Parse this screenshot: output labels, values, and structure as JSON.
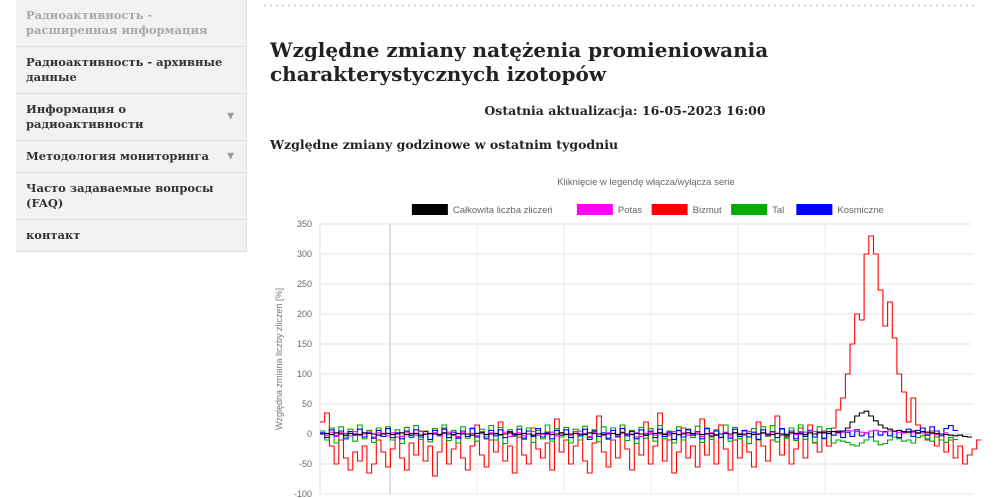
{
  "sidebar": {
    "items": [
      {
        "label": "Радиоактивность - расширенная информация",
        "muted": true,
        "chevron": false
      },
      {
        "label": "Радиоактивность - архивные данные",
        "muted": false,
        "chevron": false
      },
      {
        "label": "Информация о радиоактивности",
        "muted": false,
        "chevron": true
      },
      {
        "label": "Методология мониторинга",
        "muted": false,
        "chevron": true
      },
      {
        "label": "Часто задаваемые вопросы (FAQ)",
        "muted": false,
        "chevron": false
      },
      {
        "label": "контакт",
        "muted": false,
        "chevron": false
      }
    ]
  },
  "main": {
    "title": "Względne zmiany natężenia promieniowania charakterystycznych izotopów",
    "updated": "Ostatnia aktualizacja: 16-05-2023 16:00",
    "subheading": "Względne zmiany godzinowe w ostatnim tygodniu"
  },
  "chart_data": {
    "type": "line",
    "title": "Kliknięcie w legendę włącza/wyłącza serie",
    "ylabel": "Względna zmiana liczby zliczeń [%]",
    "ylim": [
      -100,
      350
    ],
    "yticks": [
      350,
      300,
      250,
      200,
      150,
      100,
      50,
      0,
      -50,
      -100
    ],
    "grid": true,
    "legend_position": "top",
    "series": [
      {
        "name": "Całkowita liczba zliczeń",
        "color": "#000000",
        "values": [
          0,
          1,
          -1,
          2,
          0,
          -2,
          1,
          0,
          -1,
          2,
          1,
          0,
          -2,
          0,
          1,
          -1,
          0,
          2,
          -1,
          0,
          1,
          -2,
          0,
          1,
          0,
          -1,
          2,
          0,
          -1,
          1,
          0,
          0,
          -2,
          1,
          2,
          -1,
          0,
          1,
          -1,
          0,
          2,
          0,
          -1,
          1,
          0,
          -2,
          1,
          0,
          1,
          -1,
          0,
          2,
          -1,
          0,
          1,
          0,
          -1,
          2,
          1,
          0,
          -1,
          0,
          1,
          -1,
          2,
          0,
          -1,
          1,
          0,
          -2,
          0,
          1,
          2,
          -1,
          0,
          1,
          -1,
          0,
          2,
          1,
          0,
          -1,
          0,
          1,
          -2,
          0,
          1,
          0,
          2,
          -1,
          0,
          1,
          -1,
          0,
          2,
          0,
          -1,
          1,
          0,
          -1,
          2,
          1,
          0,
          -1,
          2,
          0,
          3,
          2,
          1,
          4,
          3,
          5,
          10,
          20,
          30,
          35,
          38,
          30,
          22,
          15,
          10,
          8,
          5,
          6,
          4,
          3,
          5,
          2,
          4,
          3,
          2,
          1,
          0,
          -1,
          -2,
          -3,
          -2,
          -4,
          -5
        ]
      },
      {
        "name": "Potas",
        "color": "#ff00ff",
        "values": [
          0,
          -2,
          3,
          -4,
          2,
          1,
          -3,
          4,
          -2,
          0,
          3,
          -5,
          2,
          1,
          -3,
          2,
          0,
          -4,
          3,
          1,
          -2,
          4,
          -1,
          0,
          2,
          -3,
          1,
          3,
          -2,
          -4,
          2,
          0,
          1,
          -3,
          4,
          -1,
          2,
          0,
          -2,
          3,
          -4,
          1,
          2,
          -3,
          0,
          4,
          -2,
          1,
          -1,
          3,
          -3,
          2,
          0,
          -2,
          4,
          -1,
          1,
          -4,
          3,
          0,
          -2,
          2,
          1,
          -3,
          3,
          -1,
          0,
          2,
          -4,
          1,
          3,
          -2,
          0,
          1,
          -3,
          4,
          -1,
          2,
          -2,
          0,
          3,
          -4,
          1,
          2,
          -1,
          0,
          3,
          -3,
          2,
          1,
          -2,
          4,
          0,
          -1,
          2,
          -3,
          3,
          1,
          -2,
          0,
          2,
          -1,
          4,
          3,
          5,
          4,
          2,
          3,
          1,
          4,
          2,
          3,
          6,
          5,
          4,
          3,
          2,
          5,
          6,
          4,
          3,
          5,
          4,
          3,
          2,
          4,
          3,
          1,
          2,
          0,
          1,
          -1,
          0,
          2
        ]
      },
      {
        "name": "Bizmut",
        "color": "#ff0000",
        "values": [
          20,
          35,
          -20,
          -50,
          -10,
          -40,
          -60,
          -30,
          -45,
          -20,
          -65,
          -50,
          -10,
          -30,
          -55,
          -25,
          -5,
          -40,
          -60,
          -15,
          -35,
          5,
          -45,
          -20,
          -70,
          -30,
          10,
          -50,
          -25,
          -5,
          -40,
          -60,
          -20,
          15,
          -35,
          -55,
          -10,
          -30,
          20,
          -45,
          -20,
          -65,
          -5,
          -35,
          -50,
          10,
          -25,
          -40,
          -15,
          -60,
          25,
          -30,
          -10,
          -50,
          -20,
          5,
          -45,
          -65,
          -15,
          30,
          -30,
          -55,
          -10,
          -40,
          15,
          -25,
          -60,
          -5,
          -35,
          20,
          -50,
          -20,
          35,
          -45,
          -10,
          -65,
          -30,
          10,
          -40,
          -20,
          -55,
          25,
          -35,
          -5,
          -50,
          15,
          -25,
          -60,
          -10,
          -40,
          5,
          -30,
          -55,
          20,
          -20,
          -45,
          -10,
          30,
          -35,
          -5,
          -50,
          -25,
          10,
          -40,
          15,
          -15,
          -30,
          5,
          -20,
          10,
          40,
          60,
          100,
          150,
          200,
          190,
          300,
          330,
          300,
          240,
          180,
          220,
          160,
          100,
          70,
          20,
          60,
          15,
          10,
          -10,
          5,
          -20,
          0,
          -30,
          -10,
          -40,
          -20,
          -50,
          -35,
          -25,
          -10
        ]
      },
      {
        "name": "Tal",
        "color": "#00aa00",
        "values": [
          5,
          -10,
          10,
          -15,
          12,
          -5,
          8,
          -12,
          15,
          -8,
          6,
          -14,
          10,
          -4,
          12,
          -10,
          7,
          -16,
          11,
          -6,
          14,
          -9,
          5,
          -13,
          9,
          -3,
          15,
          -11,
          6,
          -15,
          12,
          -7,
          10,
          -12,
          8,
          -5,
          14,
          -10,
          11,
          -16,
          7,
          -4,
          13,
          -9,
          10,
          -14,
          6,
          -8,
          15,
          -12,
          9,
          -5,
          11,
          -15,
          8,
          -10,
          13,
          -6,
          7,
          -13,
          12,
          -9,
          10,
          -4,
          15,
          -11,
          6,
          -16,
          11,
          -7,
          9,
          -12,
          14,
          -8,
          5,
          -15,
          12,
          -10,
          8,
          -6,
          13,
          -14,
          10,
          -9,
          7,
          -5,
          15,
          -12,
          11,
          -8,
          6,
          -16,
          9,
          -10,
          12,
          -4,
          14,
          -13,
          8,
          -7,
          10,
          -11,
          15,
          -9,
          6,
          -14,
          12,
          -8,
          9,
          -15,
          -10,
          -12,
          -14,
          -18,
          -20,
          -15,
          -10,
          -5,
          -12,
          -18,
          -16,
          -10,
          -5,
          -8,
          -12,
          -10,
          -15,
          -6,
          -3,
          -8,
          -12,
          -5,
          -10,
          -14,
          -6,
          -9
        ]
      },
      {
        "name": "Kosmiczne",
        "color": "#0000ff",
        "values": [
          2,
          -6,
          7,
          -3,
          5,
          -8,
          4,
          -2,
          8,
          -5,
          3,
          -7,
          6,
          -4,
          9,
          -6,
          2,
          -8,
          5,
          -3,
          7,
          -5,
          4,
          -9,
          6,
          -2,
          8,
          -6,
          3,
          -7,
          5,
          -4,
          9,
          -5,
          2,
          -8,
          6,
          -3,
          7,
          -6,
          4,
          -2,
          8,
          -7,
          5,
          -4,
          9,
          -5,
          3,
          -8,
          6,
          -2,
          7,
          -6,
          4,
          -3,
          8,
          -9,
          5,
          -4,
          2,
          -7,
          6,
          -5,
          9,
          -3,
          4,
          -8,
          7,
          -2,
          5,
          -6,
          8,
          -4,
          3,
          -9,
          6,
          -5,
          7,
          -2,
          4,
          -8,
          9,
          -3,
          5,
          -6,
          2,
          -7,
          8,
          -4,
          6,
          -5,
          3,
          -9,
          7,
          -2,
          4,
          -6,
          9,
          -3,
          5,
          -8,
          2,
          -4,
          6,
          -5,
          3,
          -7,
          4,
          -2,
          5,
          -6,
          3,
          -4,
          7,
          -3,
          2,
          -5,
          6,
          -2,
          4,
          -3,
          5,
          -6,
          3,
          8,
          -4,
          6,
          10,
          -2,
          12,
          5,
          -3,
          9,
          14,
          6
        ]
      }
    ]
  }
}
